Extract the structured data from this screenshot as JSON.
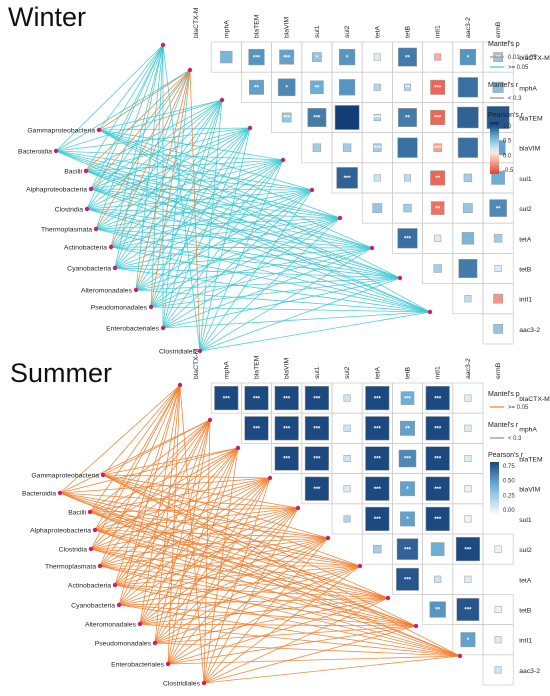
{
  "chart_data": [
    {
      "type": "heatmap",
      "title": "Winter",
      "genes": [
        "blaCTX-M",
        "mphA",
        "blaTEM",
        "blaVIM",
        "sul1",
        "sul2",
        "tetA",
        "tetB",
        "intI1",
        "aac3-2",
        "ermB"
      ],
      "taxa": [
        "Gammaproteobacteria",
        "Bacteroidia",
        "Bacilli",
        "Alphaproteobacteria",
        "Clostridia",
        "Thermoplasmata",
        "Actinobacteria",
        "Cyanobacteria",
        "Alteromonadales",
        "Pseudomonadales",
        "Enterobacteriales",
        "Clostridiales"
      ],
      "correlations": [
        [
          0.45,
          0.6,
          0.55,
          0.35,
          0.6,
          0.1,
          0.7,
          -0.25,
          0.6,
          0.35
        ],
        [
          0.55,
          0.65,
          0.5,
          0.6,
          0.25,
          0.25,
          -0.55,
          0.75,
          0.4
        ],
        [
          0.35,
          0.7,
          0.95,
          0.25,
          0.7,
          -0.55,
          0.8,
          0.85
        ],
        [
          0.3,
          0.3,
          0.3,
          0.75,
          -0.3,
          0.75,
          0.55
        ],
        [
          0.8,
          0.15,
          0.2,
          -0.55,
          0.3,
          0.5
        ],
        [
          0.35,
          0.3,
          -0.5,
          0.35,
          0.65
        ],
        [
          0.75,
          0.1,
          0.45,
          0.3
        ],
        [
          0.3,
          0.7,
          0.1
        ],
        [
          0.2,
          -0.35
        ],
        [
          0.35
        ]
      ],
      "significance": [
        [
          "",
          "***",
          "***",
          "*",
          "*",
          "",
          "**",
          "",
          "*",
          "**"
        ],
        [
          "**",
          "*",
          "**",
          "",
          "",
          "**",
          "***",
          ""
        ],
        [
          "***",
          "***",
          "",
          "***",
          "**",
          "***",
          ""
        ],
        [
          "",
          "",
          "***",
          "",
          "***",
          ""
        ],
        [
          "***",
          "",
          "",
          "**",
          "",
          ""
        ],
        [
          "",
          "",
          "**",
          "",
          "**"
        ],
        [
          "***",
          "",
          "",
          ""
        ],
        [
          "",
          "",
          ""
        ],
        [
          "",
          ""
        ],
        [
          ""
        ]
      ],
      "legend": {
        "mantel_p_title": "Mantel's p",
        "mantel_p_items": [
          {
            "label": "0.01 - 0.05",
            "color": "#f07f2e"
          },
          {
            "label": ">= 0.05",
            "color": "#3ec9d4"
          }
        ],
        "mantel_r_title": "Mantel's r",
        "mantel_r_items": [
          "< 0.3"
        ],
        "pearson_title": "Pearson's r",
        "pearson_ticks": [
          "1.0",
          "0.5",
          "0.0",
          "-0.5"
        ],
        "pearson_range": [
          -0.7,
          1.0
        ]
      }
    },
    {
      "type": "heatmap",
      "title": "Summer",
      "genes": [
        "blaCTX-M",
        "mphA",
        "blaTEM",
        "blaVIM",
        "sul1",
        "sul2",
        "tetA",
        "tetB",
        "intI1",
        "aac3-2",
        "ermB"
      ],
      "taxa": [
        "Gammaproteobacteria",
        "Bacteroidia",
        "Bacilli",
        "Alphaproteobacteria",
        "Clostridia",
        "Thermoplasmata",
        "Actinobacteria",
        "Cyanobacteria",
        "Alteromonadales",
        "Pseudomonadales",
        "Enterobacteriales",
        "Clostridiales"
      ],
      "correlations": [
        [
          0.9,
          0.9,
          0.9,
          0.9,
          0.15,
          0.9,
          0.5,
          0.9,
          0.1
        ],
        [
          0.9,
          0.9,
          0.9,
          0.15,
          0.9,
          0.55,
          0.9,
          0.1
        ],
        [
          0.9,
          0.9,
          0.15,
          0.9,
          0.65,
          0.9,
          0.1
        ],
        [
          0.9,
          0.1,
          0.9,
          0.55,
          0.9,
          0.05
        ],
        [
          0.25,
          0.9,
          0.55,
          0.9,
          0.05
        ],
        [
          0.3,
          0.8,
          0.5,
          0.9,
          0.05
        ],
        [
          0.85,
          0.15,
          0.1
        ],
        [
          0.6,
          0.85,
          0.05
        ],
        [
          0.55,
          0.1
        ],
        [
          0.15
        ]
      ],
      "significance": [
        [
          "***",
          "***",
          "***",
          "***",
          "",
          "***",
          "***",
          "***",
          ""
        ],
        [
          "***",
          "***",
          "***",
          "",
          "***",
          "**",
          "***",
          ""
        ],
        [
          "***",
          "***",
          "",
          "***",
          "***",
          "***",
          ""
        ],
        [
          "***",
          "",
          "***",
          "*",
          "***",
          ""
        ],
        [
          "",
          "***",
          "*",
          "***",
          ""
        ],
        [
          "",
          "***",
          "",
          "***",
          ""
        ],
        [
          "***",
          "",
          ""
        ],
        [
          "**",
          "***",
          ""
        ],
        [
          "*",
          ""
        ],
        [
          ""
        ]
      ],
      "legend": {
        "mantel_p_title": "Mantel's p",
        "mantel_p_items": [
          {
            "label": ">= 0.05",
            "color": "#f07f2e"
          }
        ],
        "mantel_r_title": "Mantel's r",
        "mantel_r_items": [
          "< 0.3"
        ],
        "pearson_title": "Pearson's r",
        "pearson_ticks": [
          "0.75",
          "0.50",
          "0.25",
          "0.00"
        ],
        "pearson_range": [
          0.0,
          0.9
        ]
      }
    }
  ]
}
